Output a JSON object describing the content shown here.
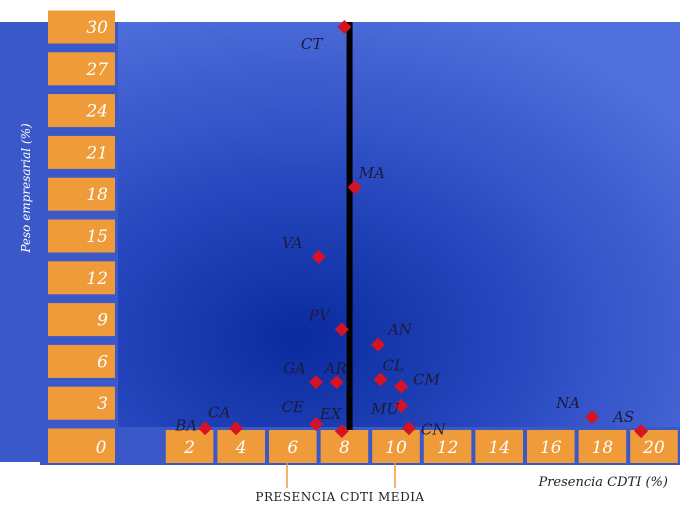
{
  "chart_data": {
    "type": "scatter",
    "xlabel": "Presencia CDTI (%)",
    "ylabel": "Peso empresarial (%)",
    "xlim": [
      0,
      20
    ],
    "ylim": [
      0,
      30
    ],
    "x_ticks": [
      "0",
      "2",
      "4",
      "6",
      "8",
      "10",
      "12",
      "14",
      "16",
      "18",
      "20"
    ],
    "y_ticks": [
      "0",
      "3",
      "6",
      "9",
      "12",
      "15",
      "18",
      "21",
      "24",
      "27",
      "30"
    ],
    "reference_line": {
      "x": 8.2,
      "label": "PRESENCIA CDTI MEDIA"
    },
    "points": [
      {
        "label": "CT",
        "x": 8.0,
        "y": 30.0
      },
      {
        "label": "MA",
        "x": 8.4,
        "y": 18.5
      },
      {
        "label": "VA",
        "x": 7.0,
        "y": 13.5
      },
      {
        "label": "PV",
        "x": 7.9,
        "y": 8.3
      },
      {
        "label": "AN",
        "x": 9.3,
        "y": 7.2
      },
      {
        "label": "GA",
        "x": 6.9,
        "y": 4.5
      },
      {
        "label": "AR",
        "x": 7.7,
        "y": 4.5
      },
      {
        "label": "CL",
        "x": 9.4,
        "y": 4.7
      },
      {
        "label": "CM",
        "x": 10.2,
        "y": 4.2
      },
      {
        "label": "CE",
        "x": 6.9,
        "y": 1.5
      },
      {
        "label": "MU",
        "x": 10.2,
        "y": 2.8
      },
      {
        "label": "EX",
        "x": 7.9,
        "y": 1.0
      },
      {
        "label": "CN",
        "x": 10.5,
        "y": 1.2
      },
      {
        "label": "BA",
        "x": 2.6,
        "y": 1.2
      },
      {
        "label": "CA",
        "x": 3.8,
        "y": 1.2
      },
      {
        "label": "NA",
        "x": 17.6,
        "y": 2.0
      },
      {
        "label": "AS",
        "x": 19.5,
        "y": 1.0
      }
    ],
    "colors": {
      "background": "#3f5fd1",
      "background_center": "#0a2a9e",
      "axis_tile": "#ef9b3a",
      "marker": "#d61324",
      "reference_line": "#000000"
    },
    "grid": false,
    "legend": "none"
  }
}
